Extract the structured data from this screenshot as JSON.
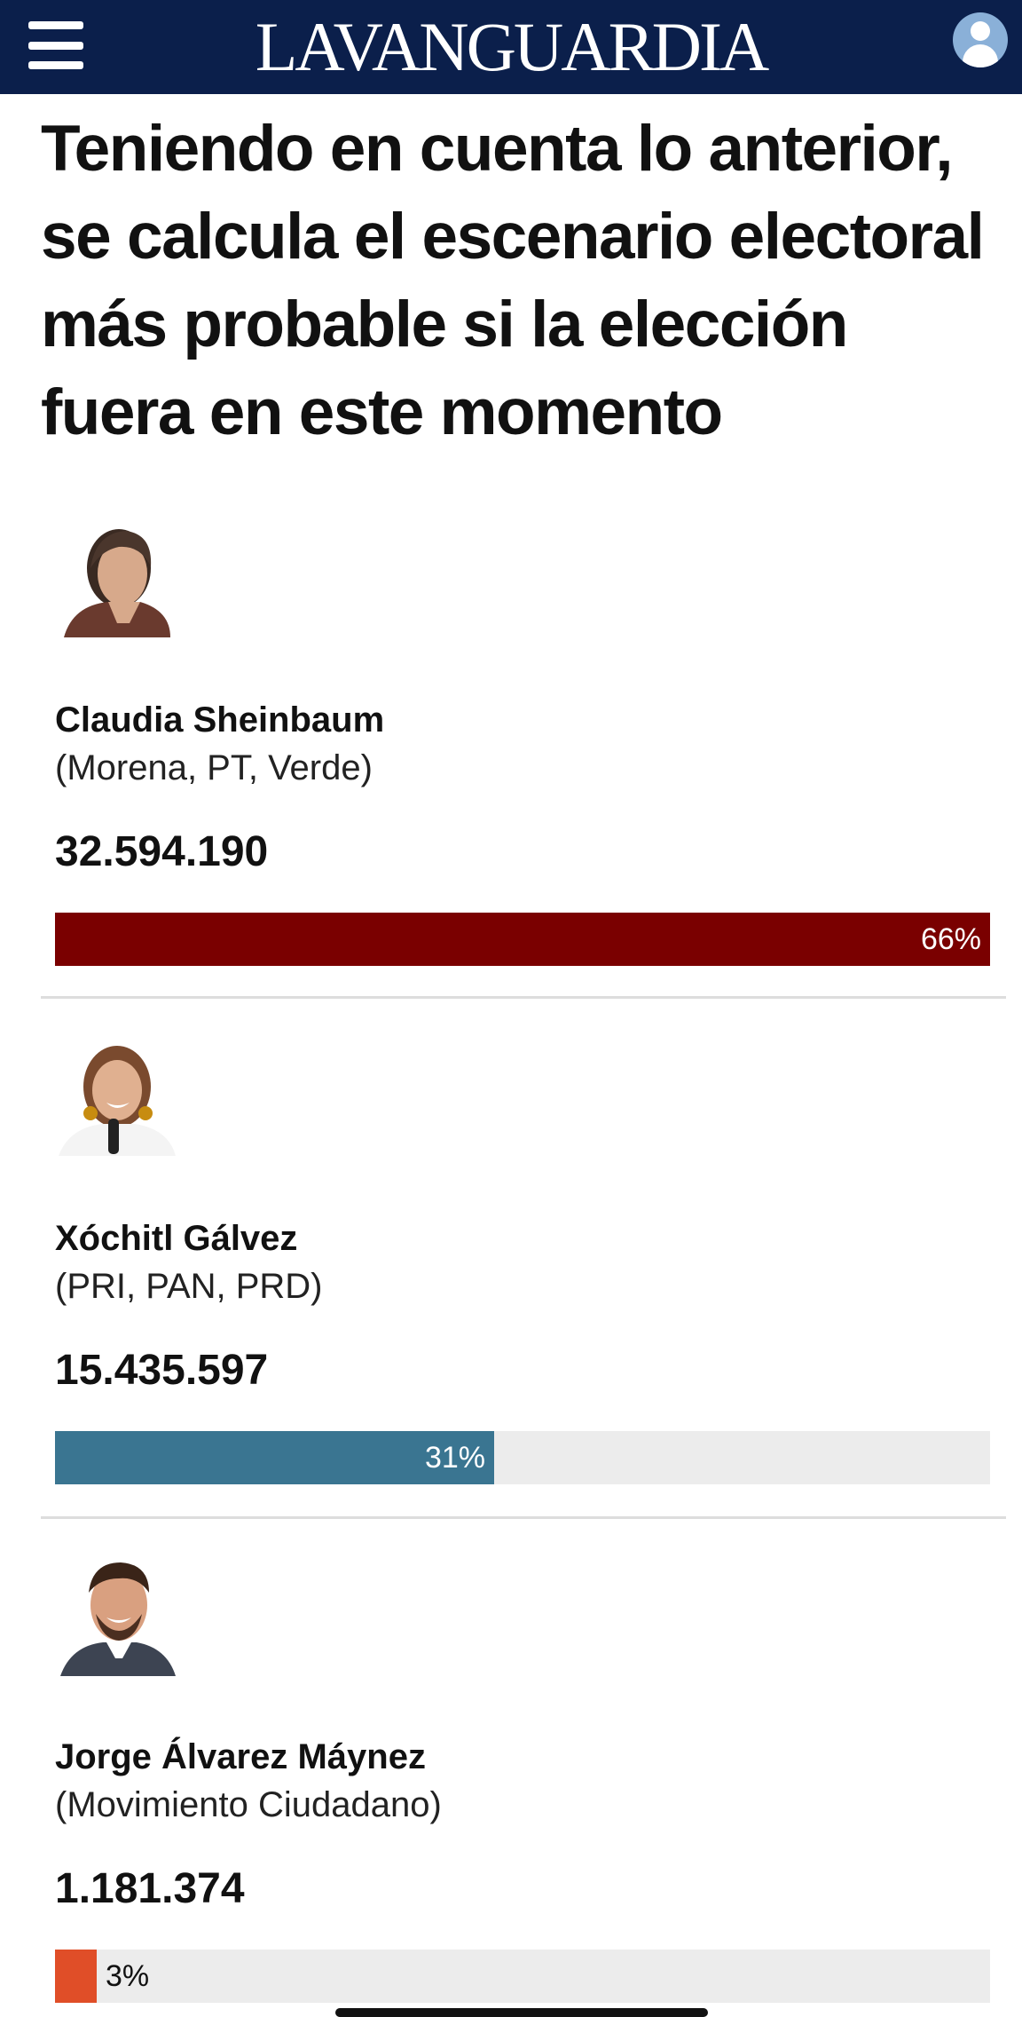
{
  "header": {
    "brand": "LAVANGUARDIA",
    "menu_icon": "hamburger-menu-icon",
    "account_icon": "user-account-icon",
    "background": "#0b1f4b"
  },
  "headline": "Teniendo en cuenta lo anterior, se calcula el escenario electoral más probable si la elección fuera en este momento",
  "candidates": [
    {
      "name": "Claudia Sheinbaum",
      "party": "(Morena, PT, Verde)",
      "votes": "32.594.190",
      "percent_label": "66%",
      "share": 1.0,
      "color": "#7a0000"
    },
    {
      "name": "Xóchitl Gálvez",
      "party": "(PRI, PAN, PRD)",
      "votes": "15.435.597",
      "percent_label": "31%",
      "share": 0.47,
      "color": "#3a7591"
    },
    {
      "name": "Jorge Álvarez Máynez",
      "party": "(Movimiento Ciudadano)",
      "votes": "1.181.374",
      "percent_label": "3%",
      "share": 0.045,
      "color": "#e04e28"
    }
  ]
}
